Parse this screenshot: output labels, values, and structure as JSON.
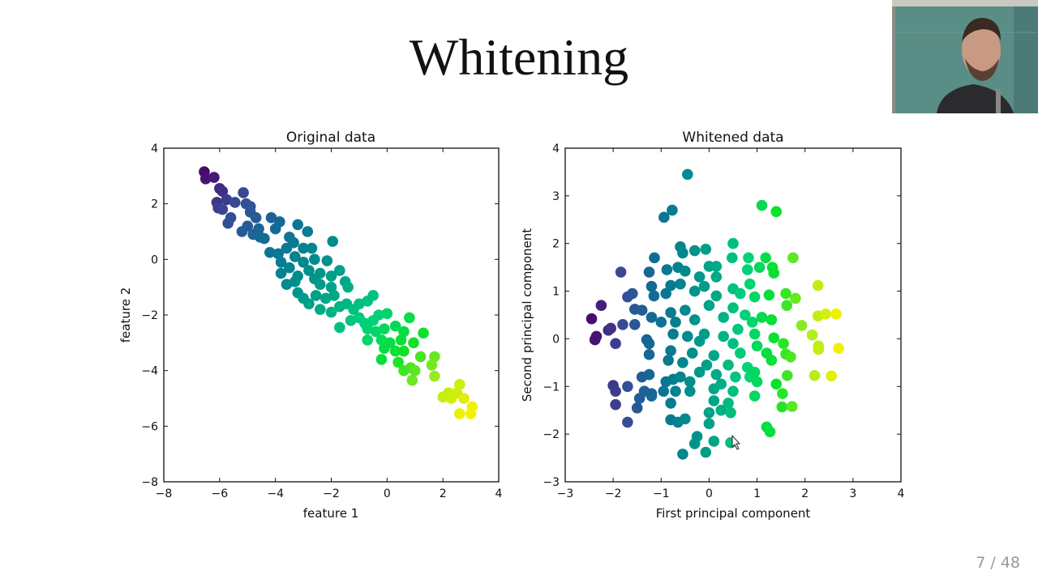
{
  "slide": {
    "title": "Whitening",
    "page_number": "7 / 48"
  },
  "colormap": [
    "#4a0a6e",
    "#3a4a95",
    "#136a96",
    "#00888e",
    "#00a886",
    "#00d27a",
    "#0ae22a",
    "#a8ec1a",
    "#f2f200"
  ],
  "chart_data": [
    {
      "type": "scatter",
      "title": "Original data",
      "xlabel": "feature 1",
      "ylabel": "feature 2",
      "xlim": [
        -8,
        4
      ],
      "ylim": [
        -8,
        4
      ],
      "xticks": [
        -8,
        -6,
        -4,
        -2,
        0,
        2,
        4
      ],
      "yticks": [
        -8,
        -6,
        -4,
        -2,
        0,
        2,
        4
      ],
      "grid": false,
      "points": [
        [
          -6.55,
          3.15
        ],
        [
          -6.5,
          2.9
        ],
        [
          -6.2,
          2.95
        ],
        [
          -6.0,
          2.55
        ],
        [
          -5.9,
          2.45
        ],
        [
          -6.1,
          2.05
        ],
        [
          -6.05,
          1.85
        ],
        [
          -5.9,
          1.8
        ],
        [
          -5.75,
          2.15
        ],
        [
          -5.45,
          2.05
        ],
        [
          -5.15,
          2.4
        ],
        [
          -5.05,
          2.0
        ],
        [
          -4.9,
          1.9
        ],
        [
          -4.9,
          1.7
        ],
        [
          -5.6,
          1.5
        ],
        [
          -5.7,
          1.3
        ],
        [
          -4.7,
          1.5
        ],
        [
          -4.15,
          1.5
        ],
        [
          -3.85,
          1.35
        ],
        [
          -4.0,
          1.1
        ],
        [
          -5.2,
          1.0
        ],
        [
          -5.0,
          1.2
        ],
        [
          -4.8,
          0.9
        ],
        [
          -4.55,
          0.8
        ],
        [
          -4.4,
          0.75
        ],
        [
          -4.6,
          1.1
        ],
        [
          -3.2,
          1.25
        ],
        [
          -2.85,
          1.0
        ],
        [
          -1.95,
          0.65
        ],
        [
          -3.5,
          0.8
        ],
        [
          -3.35,
          0.6
        ],
        [
          -3.6,
          0.4
        ],
        [
          -4.2,
          0.25
        ],
        [
          -3.9,
          0.2
        ],
        [
          -3.0,
          0.4
        ],
        [
          -2.7,
          0.4
        ],
        [
          -3.3,
          0.1
        ],
        [
          -3.0,
          -0.1
        ],
        [
          -2.6,
          0.0
        ],
        [
          -2.15,
          -0.05
        ],
        [
          -3.8,
          -0.1
        ],
        [
          -3.5,
          -0.3
        ],
        [
          -2.8,
          -0.4
        ],
        [
          -2.4,
          -0.5
        ],
        [
          -3.8,
          -0.5
        ],
        [
          -3.2,
          -0.6
        ],
        [
          -2.6,
          -0.7
        ],
        [
          -2.0,
          -0.6
        ],
        [
          -1.7,
          -0.4
        ],
        [
          -3.6,
          -0.9
        ],
        [
          -3.3,
          -0.8
        ],
        [
          -2.4,
          -0.9
        ],
        [
          -2.0,
          -1.0
        ],
        [
          -1.4,
          -1.0
        ],
        [
          -1.5,
          -0.8
        ],
        [
          -3.2,
          -1.2
        ],
        [
          -3.0,
          -1.4
        ],
        [
          -2.55,
          -1.3
        ],
        [
          -2.2,
          -1.4
        ],
        [
          -1.9,
          -1.3
        ],
        [
          -2.8,
          -1.6
        ],
        [
          -2.4,
          -1.8
        ],
        [
          -2.0,
          -1.9
        ],
        [
          -1.7,
          -1.7
        ],
        [
          -1.45,
          -1.6
        ],
        [
          -1.2,
          -1.8
        ],
        [
          -1.0,
          -1.6
        ],
        [
          -0.7,
          -1.5
        ],
        [
          -0.5,
          -1.3
        ],
        [
          -1.7,
          -2.45
        ],
        [
          -1.3,
          -2.2
        ],
        [
          -1.0,
          -2.1
        ],
        [
          -0.8,
          -2.3
        ],
        [
          -0.5,
          -2.2
        ],
        [
          -0.3,
          -2.0
        ],
        [
          0.0,
          -1.95
        ],
        [
          -0.7,
          -2.5
        ],
        [
          -0.4,
          -2.6
        ],
        [
          -0.1,
          -2.5
        ],
        [
          0.3,
          -2.4
        ],
        [
          -0.7,
          -2.9
        ],
        [
          -0.2,
          -2.9
        ],
        [
          0.1,
          -3.0
        ],
        [
          0.5,
          -2.9
        ],
        [
          0.8,
          -2.1
        ],
        [
          0.6,
          -2.6
        ],
        [
          0.95,
          -3.0
        ],
        [
          1.3,
          -2.65
        ],
        [
          0.3,
          -3.3
        ],
        [
          0.6,
          -3.3
        ],
        [
          -0.1,
          -3.2
        ],
        [
          -0.2,
          -3.6
        ],
        [
          0.4,
          -3.7
        ],
        [
          0.6,
          -4.0
        ],
        [
          0.85,
          -3.9
        ],
        [
          0.9,
          -4.35
        ],
        [
          1.0,
          -4.0
        ],
        [
          1.2,
          -3.5
        ],
        [
          1.7,
          -3.5
        ],
        [
          1.6,
          -3.8
        ],
        [
          1.7,
          -4.2
        ],
        [
          2.0,
          -4.95
        ],
        [
          2.2,
          -4.8
        ],
        [
          2.3,
          -5.0
        ],
        [
          2.5,
          -4.8
        ],
        [
          2.6,
          -4.5
        ],
        [
          2.75,
          -5.0
        ],
        [
          2.6,
          -5.55
        ],
        [
          3.05,
          -5.3
        ],
        [
          3.0,
          -5.55
        ]
      ]
    },
    {
      "type": "scatter",
      "title": "Whitened data",
      "xlabel": "First principal component",
      "ylabel": "Second principal component",
      "xlim": [
        -3,
        4
      ],
      "ylim": [
        -3,
        4
      ],
      "xticks": [
        -3,
        -2,
        -1,
        0,
        1,
        2,
        3,
        4
      ],
      "yticks": [
        -3,
        -2,
        -1,
        0,
        1,
        2,
        3,
        4
      ],
      "grid": false,
      "points": [
        [
          -0.45,
          3.45
        ],
        [
          -0.77,
          2.7
        ],
        [
          -0.94,
          2.55
        ],
        [
          1.1,
          2.8
        ],
        [
          1.4,
          2.67
        ],
        [
          0.5,
          2.0
        ],
        [
          -0.6,
          1.93
        ],
        [
          -0.55,
          1.8
        ],
        [
          -0.3,
          1.85
        ],
        [
          -0.07,
          1.88
        ],
        [
          0.48,
          1.7
        ],
        [
          0.82,
          1.7
        ],
        [
          1.18,
          1.7
        ],
        [
          1.75,
          1.7
        ],
        [
          -1.14,
          1.7
        ],
        [
          -0.88,
          1.45
        ],
        [
          -0.65,
          1.5
        ],
        [
          -0.5,
          1.42
        ],
        [
          0.0,
          1.52
        ],
        [
          0.15,
          1.52
        ],
        [
          0.8,
          1.45
        ],
        [
          1.05,
          1.5
        ],
        [
          1.32,
          1.5
        ],
        [
          1.35,
          1.38
        ],
        [
          -1.25,
          1.4
        ],
        [
          -1.84,
          1.4
        ],
        [
          -0.2,
          1.3
        ],
        [
          0.15,
          1.3
        ],
        [
          0.85,
          1.15
        ],
        [
          -1.2,
          1.1
        ],
        [
          -0.8,
          1.12
        ],
        [
          -0.6,
          1.15
        ],
        [
          -0.1,
          1.1
        ],
        [
          0.5,
          1.05
        ],
        [
          1.25,
          0.92
        ],
        [
          1.6,
          0.95
        ],
        [
          1.8,
          0.85
        ],
        [
          2.27,
          1.12
        ],
        [
          -1.6,
          0.95
        ],
        [
          -1.7,
          0.88
        ],
        [
          -1.15,
          0.9
        ],
        [
          -0.9,
          0.95
        ],
        [
          -0.3,
          1.0
        ],
        [
          0.15,
          0.9
        ],
        [
          0.65,
          0.95
        ],
        [
          0.95,
          0.88
        ],
        [
          -2.25,
          0.7
        ],
        [
          -1.55,
          0.62
        ],
        [
          -1.4,
          0.6
        ],
        [
          -1.2,
          0.45
        ],
        [
          -0.8,
          0.55
        ],
        [
          -0.5,
          0.6
        ],
        [
          0.0,
          0.7
        ],
        [
          0.5,
          0.65
        ],
        [
          0.75,
          0.5
        ],
        [
          1.1,
          0.45
        ],
        [
          1.62,
          0.7
        ],
        [
          2.27,
          0.48
        ],
        [
          2.43,
          0.52
        ],
        [
          2.65,
          0.52
        ],
        [
          -2.45,
          0.42
        ],
        [
          -1.8,
          0.3
        ],
        [
          -1.55,
          0.3
        ],
        [
          -1.0,
          0.35
        ],
        [
          -0.7,
          0.35
        ],
        [
          -0.3,
          0.4
        ],
        [
          0.3,
          0.45
        ],
        [
          0.9,
          0.35
        ],
        [
          1.3,
          0.4
        ],
        [
          1.93,
          0.28
        ],
        [
          -2.05,
          0.22
        ],
        [
          -2.1,
          0.18
        ],
        [
          -2.35,
          0.05
        ],
        [
          -2.38,
          -0.02
        ],
        [
          -1.3,
          -0.02
        ],
        [
          -0.75,
          0.1
        ],
        [
          -0.45,
          0.05
        ],
        [
          -0.1,
          0.1
        ],
        [
          0.3,
          0.05
        ],
        [
          0.6,
          0.2
        ],
        [
          0.95,
          0.1
        ],
        [
          1.35,
          0.02
        ],
        [
          2.15,
          0.08
        ],
        [
          -1.95,
          -0.1
        ],
        [
          -1.25,
          -0.1
        ],
        [
          -0.2,
          -0.05
        ],
        [
          0.5,
          -0.1
        ],
        [
          1.0,
          -0.15
        ],
        [
          1.55,
          -0.1
        ],
        [
          2.28,
          -0.15
        ],
        [
          2.7,
          -0.2
        ],
        [
          2.28,
          -0.22
        ],
        [
          -0.8,
          -0.25
        ],
        [
          -0.35,
          -0.3
        ],
        [
          0.1,
          -0.35
        ],
        [
          0.65,
          -0.3
        ],
        [
          1.2,
          -0.3
        ],
        [
          1.6,
          -0.32
        ],
        [
          1.7,
          -0.38
        ],
        [
          -1.25,
          -0.33
        ],
        [
          -0.85,
          -0.45
        ],
        [
          -0.55,
          -0.5
        ],
        [
          -0.05,
          -0.55
        ],
        [
          0.4,
          -0.55
        ],
        [
          0.8,
          -0.6
        ],
        [
          1.3,
          -0.45
        ],
        [
          -0.6,
          -0.8
        ],
        [
          -0.2,
          -0.7
        ],
        [
          0.15,
          -0.75
        ],
        [
          0.55,
          -0.8
        ],
        [
          0.95,
          -0.7
        ],
        [
          1.0,
          -0.9
        ],
        [
          1.63,
          -0.77
        ],
        [
          2.2,
          -0.77
        ],
        [
          2.55,
          -0.78
        ],
        [
          -1.4,
          -0.8
        ],
        [
          -1.25,
          -0.75
        ],
        [
          -0.9,
          -0.9
        ],
        [
          -0.75,
          -0.85
        ],
        [
          -0.4,
          -0.9
        ],
        [
          0.25,
          -0.95
        ],
        [
          0.85,
          -0.8
        ],
        [
          1.4,
          -0.95
        ],
        [
          -2.0,
          -0.98
        ],
        [
          -1.7,
          -1.0
        ],
        [
          -1.95,
          -1.1
        ],
        [
          -1.35,
          -1.1
        ],
        [
          -1.2,
          -1.15
        ],
        [
          -0.95,
          -1.1
        ],
        [
          -0.7,
          -1.1
        ],
        [
          -0.4,
          -1.1
        ],
        [
          0.1,
          -1.05
        ],
        [
          0.5,
          -1.1
        ],
        [
          0.95,
          -1.2
        ],
        [
          -1.45,
          -1.25
        ],
        [
          -1.2,
          -1.2
        ],
        [
          -0.8,
          -1.35
        ],
        [
          0.1,
          -1.3
        ],
        [
          0.4,
          -1.35
        ],
        [
          1.53,
          -1.15
        ],
        [
          -1.95,
          -1.38
        ],
        [
          -1.5,
          -1.45
        ],
        [
          0.0,
          -1.55
        ],
        [
          0.25,
          -1.5
        ],
        [
          0.45,
          -1.55
        ],
        [
          1.52,
          -1.43
        ],
        [
          1.73,
          -1.42
        ],
        [
          -0.8,
          -1.7
        ],
        [
          -0.65,
          -1.75
        ],
        [
          -0.5,
          -1.68
        ],
        [
          0.0,
          -1.78
        ],
        [
          -1.7,
          -1.75
        ],
        [
          1.2,
          -1.85
        ],
        [
          1.27,
          -1.95
        ],
        [
          -0.25,
          -2.05
        ],
        [
          -0.3,
          -2.2
        ],
        [
          0.1,
          -2.15
        ],
        [
          0.45,
          -2.18
        ],
        [
          -0.55,
          -2.42
        ],
        [
          -0.07,
          -2.38
        ]
      ]
    }
  ]
}
